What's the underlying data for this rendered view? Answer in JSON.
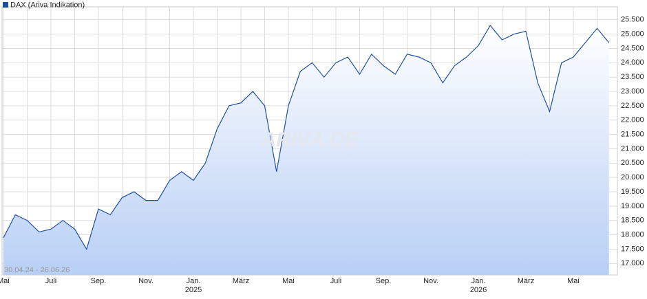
{
  "chart_data": {
    "type": "line",
    "legend": "DAX (Ariva Indikation)",
    "range_label": "30.04.24 - 26.06.26",
    "watermark": "ARIVA.DE",
    "categories": [
      "Mai",
      null,
      null,
      null,
      "Juli",
      null,
      null,
      null,
      "Sep.",
      null,
      null,
      null,
      "Nov.",
      null,
      null,
      null,
      "Jan.",
      null,
      null,
      null,
      "März",
      null,
      null,
      null,
      "Mai",
      null,
      null,
      null,
      "Juli",
      null,
      null,
      null,
      "Sep.",
      null,
      null,
      null,
      "Nov.",
      null,
      null,
      null,
      "Jan.",
      null,
      null,
      null,
      "März",
      null,
      null,
      null,
      "Mai",
      null,
      null,
      null
    ],
    "year_labels": [
      null,
      null,
      null,
      null,
      null,
      null,
      null,
      null,
      null,
      null,
      null,
      null,
      null,
      null,
      null,
      null,
      "2025",
      null,
      null,
      null,
      null,
      null,
      null,
      null,
      null,
      null,
      null,
      null,
      null,
      null,
      null,
      null,
      null,
      null,
      null,
      null,
      null,
      null,
      null,
      null,
      "2026",
      null,
      null,
      null,
      null,
      null,
      null,
      null,
      null,
      null,
      null,
      null
    ],
    "series": [
      {
        "name": "DAX (Ariva Indikation)",
        "color": "#1f4fa0",
        "values": [
          17900,
          18700,
          18500,
          18100,
          18200,
          18500,
          18200,
          17500,
          18900,
          18700,
          19300,
          19500,
          19200,
          19200,
          19900,
          20200,
          19900,
          20500,
          21700,
          22500,
          22600,
          23000,
          22500,
          20200,
          22500,
          23700,
          24000,
          23500,
          24000,
          24200,
          23600,
          24300,
          23900,
          23600,
          24300,
          24200,
          24000,
          23300,
          23900,
          24200,
          24600,
          25300,
          24800,
          25000,
          25100,
          23300,
          22300,
          24000,
          24200,
          24700,
          25200,
          24700
        ]
      }
    ],
    "ylim": [
      16600,
      25950
    ],
    "yticks": [
      {
        "value": 17000,
        "label": "17.000"
      },
      {
        "value": 17500,
        "label": "17.500"
      },
      {
        "value": 18000,
        "label": "18.000"
      },
      {
        "value": 18500,
        "label": "18.500"
      },
      {
        "value": 19000,
        "label": "19.000"
      },
      {
        "value": 19500,
        "label": "19.500"
      },
      {
        "value": 20000,
        "label": "20.000"
      },
      {
        "value": 20500,
        "label": "20.500"
      },
      {
        "value": 21000,
        "label": "21.000"
      },
      {
        "value": 21500,
        "label": "21.500"
      },
      {
        "value": 22000,
        "label": "22.000"
      },
      {
        "value": 22500,
        "label": "22.500"
      },
      {
        "value": 23000,
        "label": "23.000"
      },
      {
        "value": 23500,
        "label": "23.500"
      },
      {
        "value": 24000,
        "label": "24.000"
      },
      {
        "value": 24500,
        "label": "24.500"
      },
      {
        "value": 25000,
        "label": "25.000"
      },
      {
        "value": 25500,
        "label": "25.500"
      }
    ],
    "grid": true
  }
}
